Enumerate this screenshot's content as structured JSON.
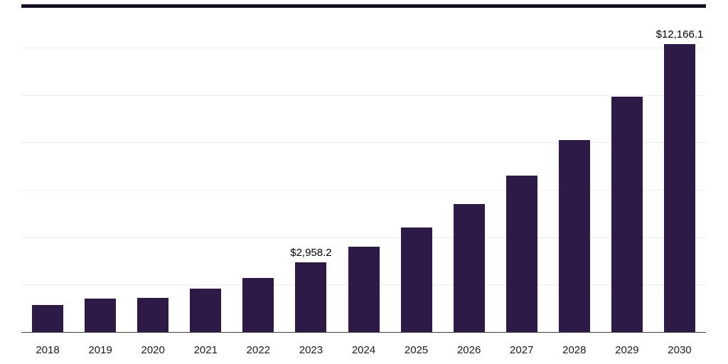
{
  "chart_data": {
    "type": "bar",
    "title": "",
    "xlabel": "",
    "ylabel": "",
    "categories": [
      "2018",
      "2019",
      "2020",
      "2021",
      "2022",
      "2023",
      "2024",
      "2025",
      "2026",
      "2027",
      "2028",
      "2029",
      "2030"
    ],
    "values": [
      1170,
      1450,
      1480,
      1870,
      2320,
      2958.2,
      3620,
      4430,
      5420,
      6640,
      8130,
      9950,
      12166.1
    ],
    "annotations": [
      {
        "category": "2023",
        "label": "$2,958.2"
      },
      {
        "category": "2030",
        "label": "$12,166.1"
      }
    ],
    "ylim": [
      0,
      13440
    ],
    "gridline_step": 2000,
    "grid": true,
    "legend": "none"
  },
  "colors": {
    "bar": "#2e1a47",
    "gridline": "#ededf1",
    "axis_line": "#3f3f3f",
    "top_border": "#170e24",
    "annotation_text": "#000000",
    "tick_text": "#1a1a1a"
  }
}
